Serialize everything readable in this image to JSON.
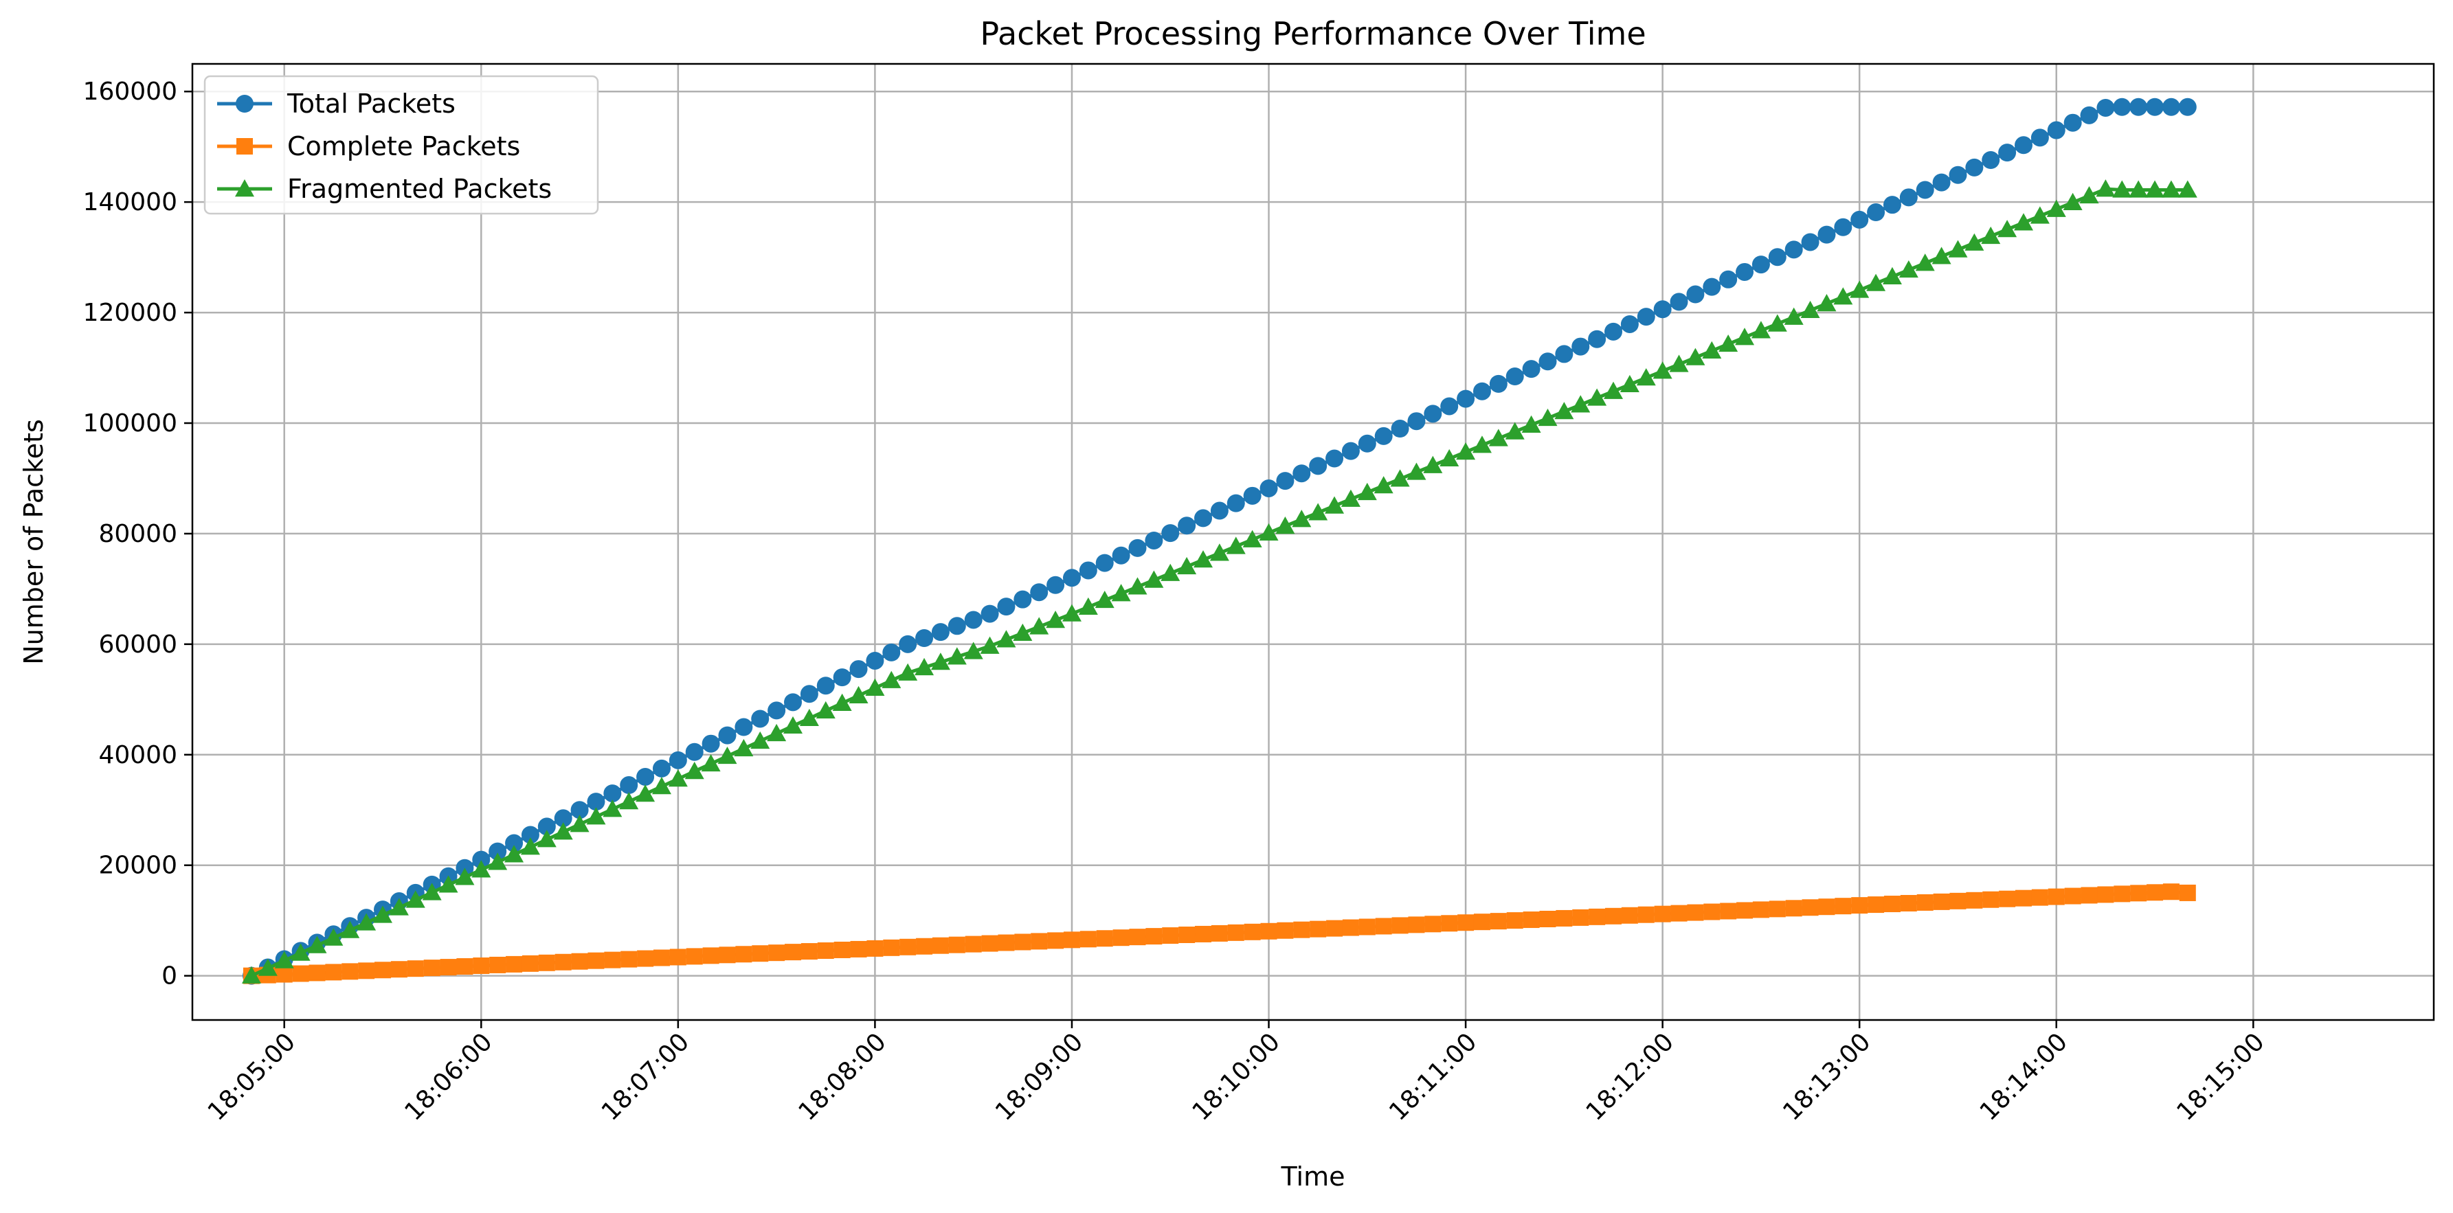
{
  "chart_data": {
    "type": "line",
    "title": "Packet Processing Performance Over Time",
    "xlabel": "Time",
    "ylabel": "Number of Packets",
    "x_start": "18:04:50",
    "x_step_seconds": 5,
    "x_ticks": [
      "18:05:00",
      "18:06:00",
      "18:07:00",
      "18:08:00",
      "18:09:00",
      "18:10:00",
      "18:11:00",
      "18:12:00",
      "18:13:00",
      "18:14:00",
      "18:15:00"
    ],
    "x_range": [
      "18:04:32",
      "18:15:55"
    ],
    "y_ticks": [
      0,
      20000,
      40000,
      60000,
      80000,
      100000,
      120000,
      140000,
      160000
    ],
    "ylim": [
      -8000,
      165000
    ],
    "grid": true,
    "legend_position": "top-left",
    "series": [
      {
        "name": "Total Packets",
        "color": "#1f77b4",
        "marker": "circle",
        "values": [
          0,
          1500,
          3000,
          4500,
          6000,
          7500,
          9000,
          10500,
          12000,
          13500,
          15000,
          16500,
          18000,
          19500,
          21000,
          22500,
          24000,
          25500,
          27000,
          28500,
          30000,
          31500,
          33000,
          34500,
          36000,
          37500,
          39000,
          40500,
          42000,
          43500,
          45000,
          46500,
          48000,
          49500,
          51000,
          52500,
          54000,
          55500,
          57000,
          58500,
          60000,
          61100,
          62200,
          63300,
          64400,
          65500,
          66800,
          68100,
          69400,
          70700,
          72000,
          73350,
          74700,
          76050,
          77400,
          78750,
          80100,
          81450,
          82800,
          84150,
          85500,
          86850,
          88200,
          89550,
          90900,
          92250,
          93600,
          94950,
          96300,
          97650,
          99000,
          100350,
          101700,
          103050,
          104400,
          105750,
          107100,
          108450,
          109800,
          111150,
          112500,
          113850,
          115200,
          116550,
          117900,
          119250,
          120600,
          121950,
          123300,
          124650,
          126000,
          127350,
          128700,
          130050,
          131400,
          132750,
          134100,
          135450,
          136800,
          138150,
          139500,
          140850,
          142200,
          143550,
          144900,
          146250,
          147600,
          148950,
          150300,
          151650,
          153000,
          154350,
          155700,
          157050,
          157200,
          157200,
          157200,
          157200,
          157200
        ]
      },
      {
        "name": "Complete Packets",
        "color": "#ff7f0e",
        "marker": "square",
        "values": [
          0,
          130,
          260,
          390,
          520,
          650,
          780,
          910,
          1040,
          1170,
          1300,
          1430,
          1560,
          1690,
          1820,
          1950,
          2080,
          2210,
          2340,
          2470,
          2600,
          2730,
          2860,
          2990,
          3120,
          3250,
          3380,
          3510,
          3640,
          3770,
          3900,
          4030,
          4160,
          4290,
          4420,
          4550,
          4680,
          4810,
          4940,
          5070,
          5200,
          5330,
          5460,
          5590,
          5720,
          5850,
          5980,
          6110,
          6240,
          6370,
          6500,
          6630,
          6760,
          6890,
          7020,
          7150,
          7280,
          7410,
          7540,
          7670,
          7800,
          7930,
          8060,
          8190,
          8320,
          8450,
          8580,
          8710,
          8840,
          8970,
          9100,
          9230,
          9360,
          9490,
          9620,
          9750,
          9880,
          10010,
          10140,
          10270,
          10400,
          10530,
          10660,
          10790,
          10920,
          11050,
          11180,
          11310,
          11440,
          11570,
          11700,
          11830,
          11960,
          12090,
          12220,
          12350,
          12480,
          12610,
          12740,
          12870,
          13000,
          13130,
          13260,
          13390,
          13520,
          13650,
          13780,
          13910,
          14040,
          14170,
          14300,
          14430,
          14560,
          14690,
          14820,
          14950,
          15080,
          15210,
          15000
        ]
      },
      {
        "name": "Fragmented Packets",
        "color": "#2ca02c",
        "marker": "triangle",
        "values": [
          0,
          1370,
          2740,
          4110,
          5480,
          6850,
          8220,
          9590,
          10960,
          12330,
          13700,
          15070,
          16440,
          17810,
          19180,
          20550,
          21920,
          23290,
          24660,
          26030,
          27400,
          28770,
          30140,
          31510,
          32880,
          34250,
          35620,
          36990,
          38360,
          39730,
          41100,
          42470,
          43840,
          45210,
          46580,
          47950,
          49320,
          50690,
          52060,
          53430,
          54800,
          55770,
          56740,
          57710,
          58680,
          59650,
          60820,
          61990,
          63160,
          64330,
          65500,
          66720,
          67940,
          69160,
          70380,
          71600,
          72820,
          74040,
          75260,
          76480,
          77700,
          78920,
          80140,
          81360,
          82580,
          83800,
          85020,
          86240,
          87460,
          88680,
          89900,
          91120,
          92340,
          93560,
          94780,
          96000,
          97220,
          98440,
          99660,
          100880,
          102100,
          103320,
          104540,
          105760,
          106980,
          108200,
          109420,
          110640,
          111860,
          113080,
          114300,
          115520,
          116740,
          117960,
          119180,
          120400,
          121620,
          122840,
          124060,
          125280,
          126500,
          127720,
          128940,
          130160,
          131380,
          132600,
          133820,
          135040,
          136260,
          137480,
          138700,
          139920,
          141140,
          142360,
          142200,
          142200,
          142200,
          142200,
          142200
        ]
      }
    ]
  }
}
